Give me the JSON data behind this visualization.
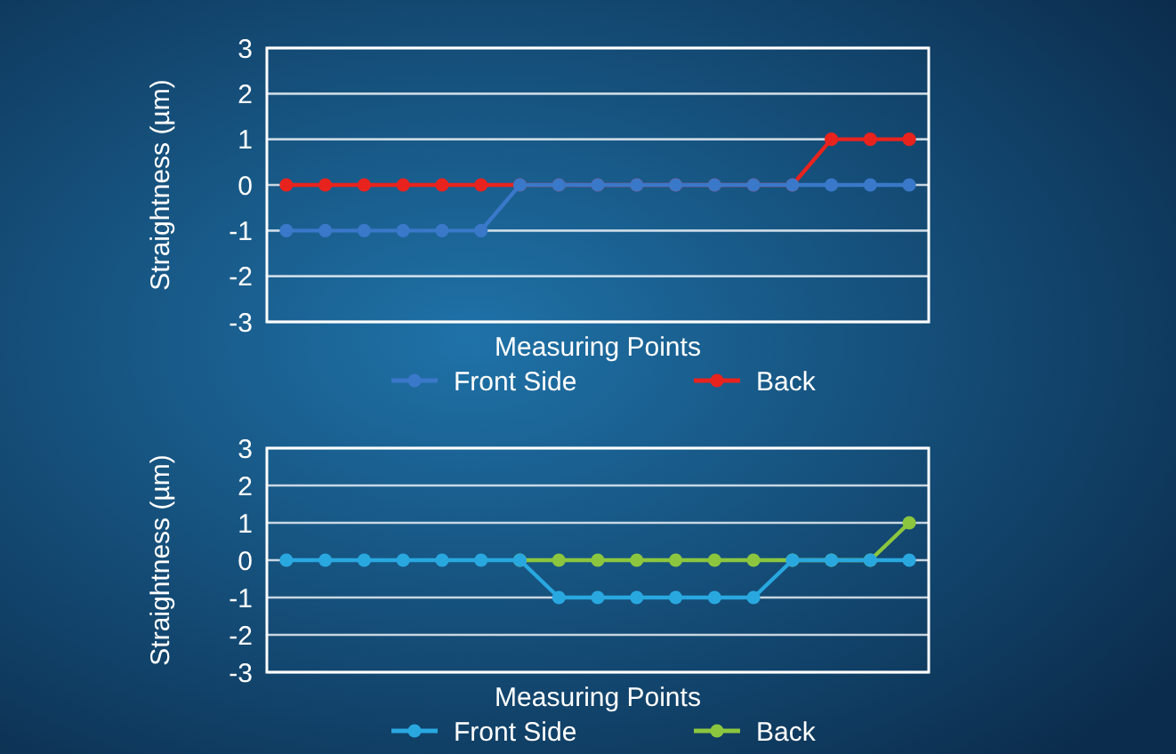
{
  "chart_data": [
    {
      "type": "line",
      "xlabel": "Measuring Points",
      "ylabel": "Straightness (µm)",
      "categories": [
        null,
        null,
        null,
        null,
        null,
        null,
        null,
        null,
        null,
        null,
        null,
        null,
        null,
        null,
        null,
        null,
        null
      ],
      "ylim": [
        -3,
        3
      ],
      "yticks": [
        -3,
        -2,
        -1,
        0,
        1,
        2,
        3
      ],
      "grid": "y",
      "legend": "bottom",
      "marker": "circle",
      "series": [
        {
          "name": "Front Side",
          "color": "#3a78c9",
          "values": [
            -1,
            -1,
            -1,
            -1,
            -1,
            -1,
            0,
            0,
            0,
            0,
            0,
            0,
            0,
            0,
            0,
            0,
            0
          ]
        },
        {
          "name": "Back",
          "color": "#e8231e",
          "values": [
            0,
            0,
            0,
            0,
            0,
            0,
            0,
            0,
            0,
            0,
            0,
            0,
            0,
            0,
            1,
            1,
            1
          ]
        }
      ]
    },
    {
      "type": "line",
      "xlabel": "Measuring Points",
      "ylabel": "Straightness (µm)",
      "categories": [
        null,
        null,
        null,
        null,
        null,
        null,
        null,
        null,
        null,
        null,
        null,
        null,
        null,
        null,
        null,
        null,
        null
      ],
      "ylim": [
        -3,
        3
      ],
      "yticks": [
        -3,
        -2,
        -1,
        0,
        1,
        2,
        3
      ],
      "grid": "y",
      "legend": "bottom",
      "marker": "circle",
      "series": [
        {
          "name": "Front Side",
          "color": "#29a8e0",
          "values": [
            0,
            0,
            0,
            0,
            0,
            0,
            0,
            -1,
            -1,
            -1,
            -1,
            -1,
            -1,
            0,
            0,
            0,
            0
          ]
        },
        {
          "name": "Back",
          "color": "#8cc63f",
          "values": [
            null,
            null,
            null,
            null,
            null,
            null,
            0,
            0,
            0,
            0,
            0,
            0,
            0,
            0,
            0,
            0,
            1
          ]
        }
      ]
    }
  ]
}
